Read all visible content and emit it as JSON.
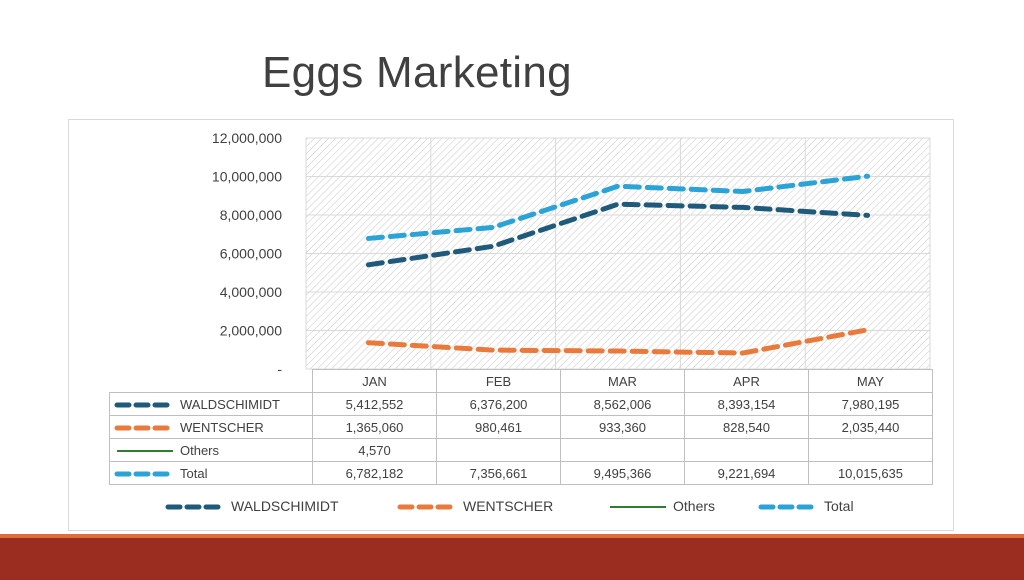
{
  "slide": {
    "title": "Eggs Marketing"
  },
  "chart_data": {
    "type": "line",
    "categories": [
      "JAN",
      "FEB",
      "MAR",
      "APR",
      "MAY"
    ],
    "series": [
      {
        "name": "WALDSCHIMIDT",
        "color": "#1f5a7a",
        "dash": "dashed",
        "values": [
          5412552,
          6376200,
          8562006,
          8393154,
          7980195
        ],
        "labels": [
          "5,412,552",
          "6,376,200",
          "8,562,006",
          "8,393,154",
          "7,980,195"
        ]
      },
      {
        "name": "WENTSCHER",
        "color": "#ea7a3c",
        "dash": "dashed",
        "values": [
          1365060,
          980461,
          933360,
          828540,
          2035440
        ],
        "labels": [
          "1,365,060",
          "980,461",
          "933,360",
          "828,540",
          "2,035,440"
        ]
      },
      {
        "name": "Others",
        "color": "#2e7d32",
        "dash": "solid",
        "values": [
          4570,
          null,
          null,
          null,
          null
        ],
        "labels": [
          "4,570",
          "",
          "",
          "",
          ""
        ]
      },
      {
        "name": "Total",
        "color": "#2ba3d6",
        "dash": "dashed",
        "values": [
          6782182,
          7356661,
          9495366,
          9221694,
          10015635
        ],
        "labels": [
          "6,782,182",
          "7,356,661",
          "9,495,366",
          "9,221,694",
          "10,015,635"
        ]
      }
    ],
    "y_ticks": [
      "12,000,000",
      "10,000,000",
      "8,000,000",
      "6,000,000",
      "4,000,000",
      "2,000,000",
      "-"
    ],
    "ylim": [
      0,
      12000000
    ],
    "grid": true,
    "plot_background": "hatched",
    "legend_position": "bottom",
    "data_table": true
  }
}
